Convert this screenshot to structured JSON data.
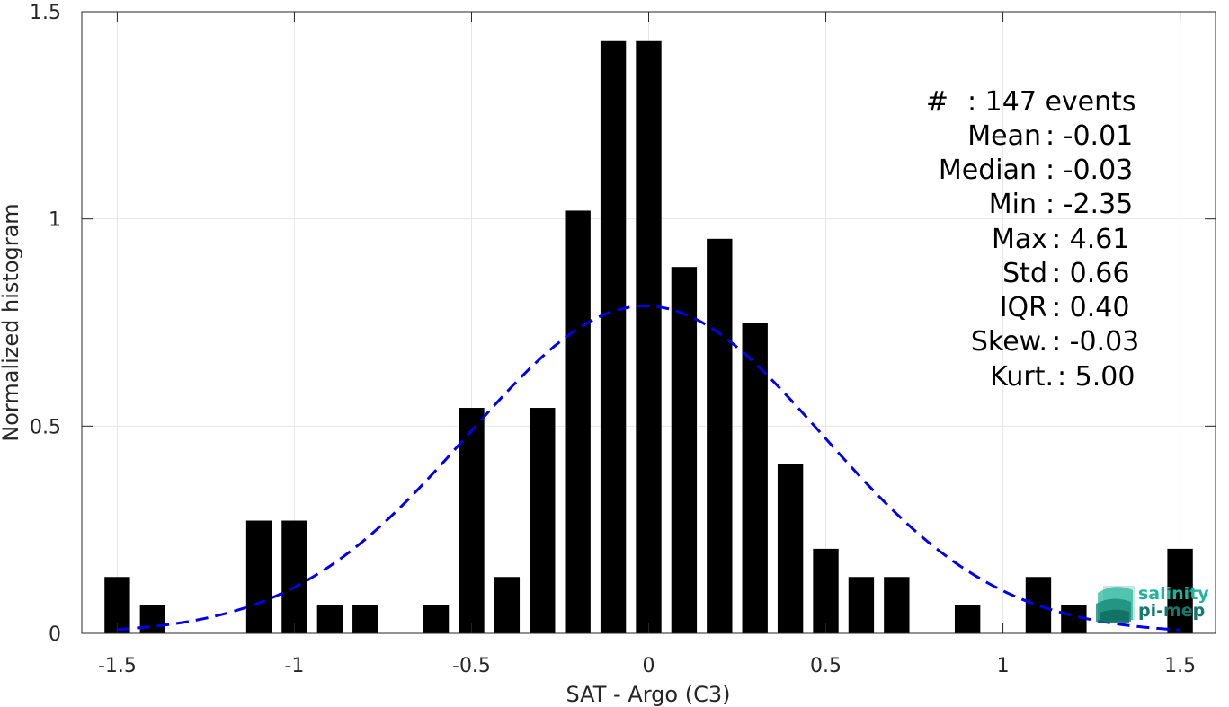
{
  "chart_data": {
    "type": "bar",
    "xlabel": "SAT - Argo (C3)",
    "ylabel": "Normalized histogram",
    "xlim": [
      -1.6,
      1.6
    ],
    "ylim": [
      0,
      1.5
    ],
    "xticks": [
      -1.5,
      -1,
      -0.5,
      0,
      0.5,
      1,
      1.5
    ],
    "xtick_labels": [
      "-1.5",
      "-1",
      "-0.5",
      "0",
      "0.5",
      "1",
      "1.5"
    ],
    "yticks": [
      0,
      0.5,
      1,
      1.5
    ],
    "ytick_labels": [
      "0",
      "0.5",
      "1",
      "1.5"
    ],
    "grid": true,
    "bin_width": 0.1,
    "bars": [
      {
        "x": -1.5,
        "value": 0.136
      },
      {
        "x": -1.4,
        "value": 0.068
      },
      {
        "x": -1.1,
        "value": 0.272
      },
      {
        "x": -1.0,
        "value": 0.272
      },
      {
        "x": -0.9,
        "value": 0.068
      },
      {
        "x": -0.8,
        "value": 0.068
      },
      {
        "x": -0.6,
        "value": 0.068
      },
      {
        "x": -0.5,
        "value": 0.544
      },
      {
        "x": -0.4,
        "value": 0.136
      },
      {
        "x": -0.3,
        "value": 0.544
      },
      {
        "x": -0.2,
        "value": 1.02
      },
      {
        "x": -0.1,
        "value": 1.429
      },
      {
        "x": 0.0,
        "value": 1.429
      },
      {
        "x": 0.1,
        "value": 0.884
      },
      {
        "x": 0.2,
        "value": 0.952
      },
      {
        "x": 0.3,
        "value": 0.748
      },
      {
        "x": 0.4,
        "value": 0.408
      },
      {
        "x": 0.5,
        "value": 0.204
      },
      {
        "x": 0.6,
        "value": 0.136
      },
      {
        "x": 0.7,
        "value": 0.136
      },
      {
        "x": 0.9,
        "value": 0.068
      },
      {
        "x": 1.1,
        "value": 0.136
      },
      {
        "x": 1.2,
        "value": 0.068
      },
      {
        "x": 1.5,
        "value": 0.204
      }
    ],
    "fit_curve": {
      "style": "dashed",
      "color": "#0000ee",
      "mean": -0.01,
      "std": 0.5,
      "peak": 0.79,
      "x_range": [
        -1.5,
        1.5
      ]
    },
    "colors": {
      "bars": "#000000",
      "grid": "#e6e6e6",
      "axis": "#262626"
    }
  },
  "stats": [
    {
      "label": "#",
      "value": ": 147 events"
    },
    {
      "label": "Mean",
      "value": ": -0.01"
    },
    {
      "label": "Median",
      "value": ": -0.03"
    },
    {
      "label": "Min",
      "value": ": -2.35"
    },
    {
      "label": "Max",
      "value": ": 4.61"
    },
    {
      "label": "Std",
      "value": ": 0.66"
    },
    {
      "label": "IQR",
      "value": ": 0.40"
    },
    {
      "label": "Skew.",
      "value": ": -0.03"
    },
    {
      "label": "Kurt.",
      "value": ": 5.00"
    }
  ],
  "logo": {
    "line1": "salinity",
    "line2": "pi-mep",
    "icon": "salinity-wave-logo-icon",
    "colors": {
      "text1": "#1fb39a",
      "text2": "#127a6c",
      "icon": "#1a9a87"
    }
  }
}
